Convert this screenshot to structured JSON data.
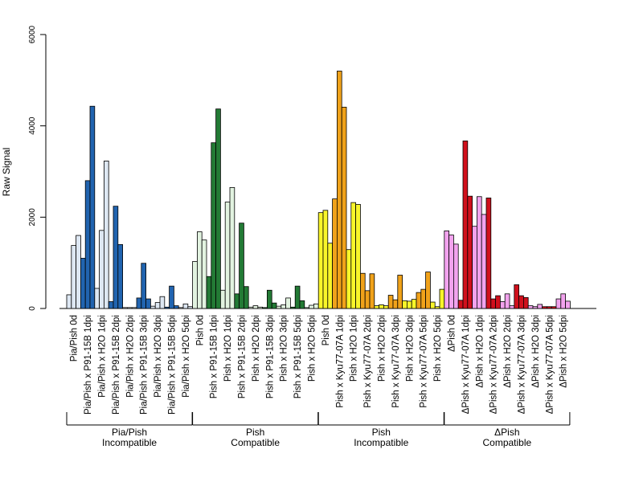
{
  "chart_data": {
    "type": "bar",
    "ylabel": "Raw Signal",
    "ylim": [
      0,
      6000
    ],
    "yticks": [
      "0",
      "2000",
      "4000",
      "6000"
    ],
    "grid": false,
    "categories": [
      "Pia/Pish 0d",
      "Pia/Pish x P91-15B 1dpi",
      "Pia/Pish x H2O 1dpi",
      "Pia/Pish x P91-15B 2dpi",
      "Pia/Pish x H2O 2dpi",
      "Pia/Pish x P91-15B 3dpi",
      "Pia/Pish x H2O 3dpi",
      "Pia/Pish x P91-15B 5dpi",
      "Pia/Pish x H2O 5dpi",
      "Pish 0d",
      "Pish x P91-15B 1dpi",
      "Pish x H2O 1dpi",
      "Pish x P91-15B 2dpi",
      "Pish x H2O 2dpi",
      "Pish x P91-15B 3dpi",
      "Pish x H2O 3dpi",
      "Pish x P91-15B 5dpi",
      "Pish x H2O 5dpi",
      "Pish 0d",
      "Pish x Kyu77-07A 1dpi",
      "Pish x H2O 1dpi",
      "Pish x Kyu77-07A 2dpi",
      "Pish x H2O 2dpi",
      "Pish x Kyu77-07A 3dpi",
      "Pish x H2O 3dpi",
      "Pish x Kyu77-07A 5dpi",
      "Pish x H2O 5dpi",
      "ΔPish 0d",
      "ΔPish x Kyu77-07A 1dpi",
      "ΔPish x H2O 1dpi",
      "ΔPish x Kyu77-07A 2dpi",
      "ΔPish x H2O 2dpi",
      "ΔPish x Kyu77-07A 3dpi",
      "ΔPish x H2O 3dpi",
      "ΔPish x Kyu77-07A 5dpi",
      "ΔPish x H2O 5dpi"
    ],
    "values": [
      [
        300,
        1380,
        1600
      ],
      [
        1100,
        2800,
        4430
      ],
      [
        440,
        1710,
        3230
      ],
      [
        150,
        2240,
        1400
      ],
      [
        20,
        20,
        20
      ],
      [
        230,
        990,
        210
      ],
      [
        50,
        130,
        260
      ],
      [
        30,
        490,
        60
      ],
      [
        20,
        100,
        40
      ],
      [
        1030,
        1680,
        1500
      ],
      [
        700,
        3630,
        4370
      ],
      [
        400,
        2330,
        2650
      ],
      [
        320,
        1870,
        480
      ],
      [
        30,
        60,
        30
      ],
      [
        20,
        400,
        120
      ],
      [
        50,
        80,
        230
      ],
      [
        30,
        490,
        170
      ],
      [
        20,
        70,
        100
      ],
      [
        2100,
        2150,
        1430
      ],
      [
        2400,
        5200,
        4410
      ],
      [
        1290,
        2320,
        2280
      ],
      [
        770,
        390,
        760
      ],
      [
        60,
        80,
        60
      ],
      [
        290,
        190,
        730
      ],
      [
        170,
        160,
        200
      ],
      [
        350,
        420,
        800
      ],
      [
        140,
        40,
        420
      ],
      [
        1700,
        1610,
        1410
      ],
      [
        180,
        3670,
        2460
      ],
      [
        1800,
        2450,
        2060
      ],
      [
        2420,
        210,
        280
      ],
      [
        150,
        320,
        60
      ],
      [
        520,
        280,
        240
      ],
      [
        60,
        40,
        90
      ],
      [
        40,
        40,
        40
      ],
      [
        210,
        320,
        160
      ]
    ],
    "colors": [
      "#dde7f2",
      "#2164b0",
      "#dde7f2",
      "#2164b0",
      "#dde7f2",
      "#2164b0",
      "#dde7f2",
      "#2164b0",
      "#dde7f2",
      "#e2f3e0",
      "#237a35",
      "#e2f3e0",
      "#237a35",
      "#e2f3e0",
      "#237a35",
      "#e2f3e0",
      "#237a35",
      "#e2f3e0",
      "#f8f52a",
      "#f0a21a",
      "#f8f52a",
      "#f0a21a",
      "#f8f52a",
      "#f0a21a",
      "#f8f52a",
      "#f0a21a",
      "#f8f52a",
      "#f2a3ee",
      "#d0101c",
      "#f2a3ee",
      "#d0101c",
      "#f2a3ee",
      "#d0101c",
      "#f2a3ee",
      "#d0101c",
      "#f2a3ee"
    ],
    "groups": [
      {
        "line1": "Pia/Pish",
        "line2": "Incompatible",
        "start": 0,
        "end": 8
      },
      {
        "line1": "Pish",
        "line2": "Compatible",
        "start": 9,
        "end": 17
      },
      {
        "line1": "Pish",
        "line2": "Incompatible",
        "start": 18,
        "end": 26
      },
      {
        "line1": "ΔPish",
        "line2": "Compatible",
        "start": 27,
        "end": 35
      }
    ]
  }
}
